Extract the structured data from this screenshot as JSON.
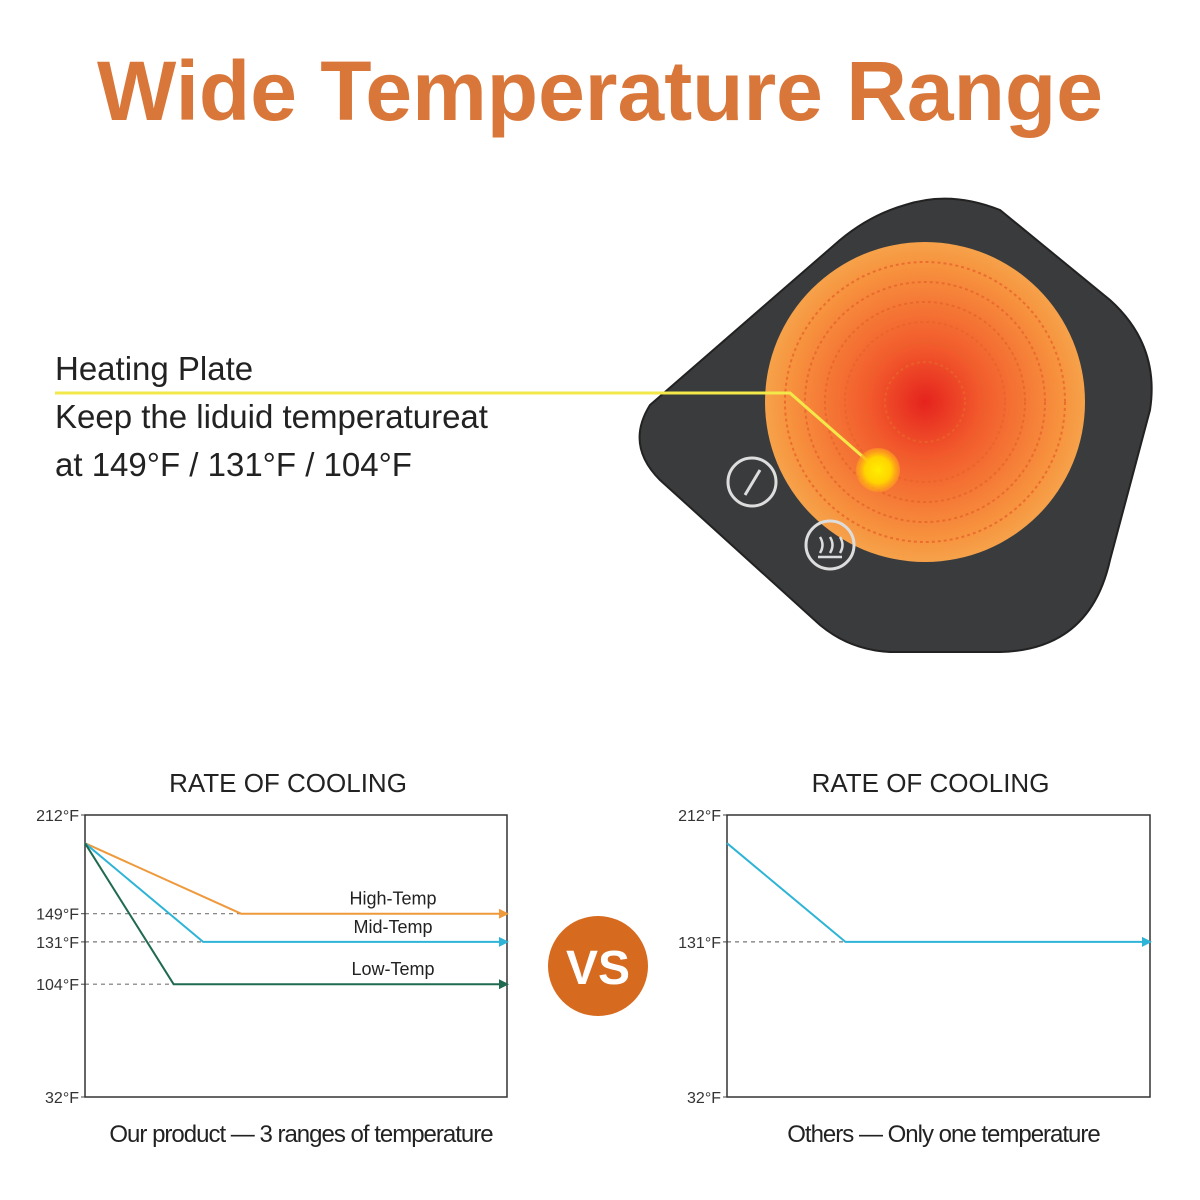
{
  "header": {
    "title": "Wide Temperature Range"
  },
  "callout": {
    "heading": "Heating Plate",
    "line1": "Keep the liduid temperatureat",
    "line2": "at 149°F / 131°F / 104°F"
  },
  "vs": "VS",
  "chart_data": [
    {
      "type": "line",
      "title": "RATE OF COOLING",
      "caption": "Our product — 3 ranges of temperature",
      "xlim": [
        0,
        100
      ],
      "ylim": [
        32,
        212
      ],
      "yticks": [
        {
          "value": 212,
          "label": "212°F"
        },
        {
          "value": 149,
          "label": "149°F"
        },
        {
          "value": 131,
          "label": "131°F"
        },
        {
          "value": 104,
          "label": "104°F"
        },
        {
          "value": 32,
          "label": "32°F"
        }
      ],
      "grid": "dashed",
      "series": [
        {
          "name": "High-Temp",
          "color": "#ee9a3c",
          "x": [
            0,
            37,
            100
          ],
          "values": [
            194,
            149,
            149
          ]
        },
        {
          "name": "Mid-Temp",
          "color": "#2eb4d6",
          "x": [
            0,
            28,
            100
          ],
          "values": [
            194,
            131,
            131
          ]
        },
        {
          "name": "Low-Temp",
          "color": "#1f6a50",
          "x": [
            0,
            21,
            100
          ],
          "values": [
            194,
            104,
            104
          ]
        }
      ]
    },
    {
      "type": "line",
      "title": "RATE OF COOLING",
      "caption": "Others — Only one temperature",
      "xlim": [
        0,
        100
      ],
      "ylim": [
        32,
        212
      ],
      "yticks": [
        {
          "value": 212,
          "label": "212°F"
        },
        {
          "value": 131,
          "label": "131°F"
        },
        {
          "value": 32,
          "label": "32°F"
        }
      ],
      "grid": "dashed",
      "series": [
        {
          "color": "#2eb4d6",
          "x": [
            0,
            28,
            100
          ],
          "values": [
            194,
            131,
            131
          ]
        }
      ]
    }
  ]
}
